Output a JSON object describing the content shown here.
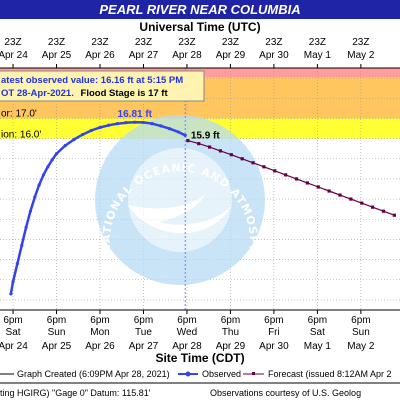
{
  "chart_data": {
    "type": "line",
    "title": "PEARL RIVER NEAR COLUMBIA",
    "top_axis_title": "Universal Time (UTC)",
    "bottom_axis_title": "Site Time (CDT)",
    "top_ticks": [
      {
        "hour": "23Z",
        "date": "Apr 24"
      },
      {
        "hour": "23Z",
        "date": "Apr 25"
      },
      {
        "hour": "23Z",
        "date": "Apr 26"
      },
      {
        "hour": "23Z",
        "date": "Apr 27"
      },
      {
        "hour": "23Z",
        "date": "Apr 28"
      },
      {
        "hour": "23Z",
        "date": "Apr 29"
      },
      {
        "hour": "23Z",
        "date": "Apr 30"
      },
      {
        "hour": "23Z",
        "date": "May 1"
      },
      {
        "hour": "23Z",
        "date": "May 2"
      }
    ],
    "bottom_ticks": [
      {
        "time": "6pm",
        "day": "Sat",
        "date": "Apr 24"
      },
      {
        "time": "6pm",
        "day": "Sun",
        "date": "Apr 25"
      },
      {
        "time": "6pm",
        "day": "Mon",
        "date": "Apr 26"
      },
      {
        "time": "6pm",
        "day": "Tue",
        "date": "Apr 27"
      },
      {
        "time": "6pm",
        "day": "Wed",
        "date": "Apr 28"
      },
      {
        "time": "6pm",
        "day": "Thu",
        "date": "Apr 29"
      },
      {
        "time": "6pm",
        "day": "Fri",
        "date": "Apr 30"
      },
      {
        "time": "6pm",
        "day": "Sat",
        "date": "May 1"
      },
      {
        "time": "6pm",
        "day": "Sun",
        "date": "May 2"
      }
    ],
    "flood_stage_labels": [
      "or: 17.0'",
      "ion: 16.0'"
    ],
    "latest_observed_line1": "atest observed value: 16.16 ft at 5:15 PM",
    "latest_observed_line2a": "OT 28-Apr-2021.",
    "latest_observed_line2b": "Flood Stage is 17 ft",
    "crest_label": "16.81 ft",
    "forecast_start_label": "15.9 ft",
    "legend": {
      "graph_created": "Graph Created (6:09PM Apr 28, 2021)",
      "observed": "Observed",
      "forecast": "Forecast (issued 8:12AM Apr 2"
    },
    "footer": {
      "datum": "ting HGIRG) \"Gage 0\" Datum: 115.81'",
      "courtesy": "Observations courtesy of U.S. Geolog"
    },
    "watermark_text": "NATIONAL OCEANIC AND ATMOSPHERIC ADMINISTRATION · U.S. DEPARTMENT OF COMMERCE",
    "colors": {
      "title_bg": "#1f24a6",
      "observed": "#3344ee",
      "forecast": "#660044",
      "major_band": "#ff9d9d",
      "moderate_band": "#ffc55e",
      "action_band": "#ffff33",
      "now_line": "#7a7aff",
      "watermark": "#b7dcf3"
    },
    "y_bands_ft": {
      "moderate_top": 17.0,
      "action_top": 16.0
    },
    "observed": [
      [
        -0.05,
        8.3
      ],
      [
        0.0,
        8.9
      ],
      [
        0.1,
        9.8
      ],
      [
        0.2,
        10.7
      ],
      [
        0.3,
        11.6
      ],
      [
        0.4,
        12.4
      ],
      [
        0.5,
        13.1
      ],
      [
        0.6,
        13.7
      ],
      [
        0.7,
        14.2
      ],
      [
        0.8,
        14.6
      ],
      [
        0.9,
        14.95
      ],
      [
        1.0,
        15.25
      ],
      [
        1.2,
        15.65
      ],
      [
        1.4,
        15.95
      ],
      [
        1.6,
        16.2
      ],
      [
        1.8,
        16.4
      ],
      [
        2.0,
        16.55
      ],
      [
        2.2,
        16.66
      ],
      [
        2.4,
        16.74
      ],
      [
        2.6,
        16.79
      ],
      [
        2.8,
        16.81
      ],
      [
        3.0,
        16.8
      ],
      [
        3.2,
        16.74
      ],
      [
        3.4,
        16.63
      ],
      [
        3.6,
        16.49
      ],
      [
        3.8,
        16.33
      ],
      [
        3.96,
        16.16
      ]
    ],
    "forecast": [
      [
        4.02,
        15.9
      ],
      [
        4.27,
        15.75
      ],
      [
        4.52,
        15.58
      ],
      [
        4.77,
        15.39
      ],
      [
        5.02,
        15.2
      ],
      [
        5.27,
        15.0
      ],
      [
        5.52,
        14.8
      ],
      [
        5.77,
        14.6
      ],
      [
        6.02,
        14.4
      ],
      [
        6.27,
        14.2
      ],
      [
        6.52,
        14.0
      ],
      [
        6.77,
        13.8
      ],
      [
        7.02,
        13.6
      ],
      [
        7.27,
        13.4
      ],
      [
        7.52,
        13.2
      ],
      [
        7.77,
        13.0
      ],
      [
        8.02,
        12.8
      ],
      [
        8.27,
        12.6
      ],
      [
        8.52,
        12.4
      ],
      [
        8.77,
        12.2
      ]
    ],
    "x_unit": "days after 23Z Apr 24 (6pm CDT Apr 24)",
    "y_unit": "ft",
    "xlim": [
      -0.3,
      8.9
    ],
    "ylim": [
      7.5,
      19.5
    ],
    "grid": true
  }
}
